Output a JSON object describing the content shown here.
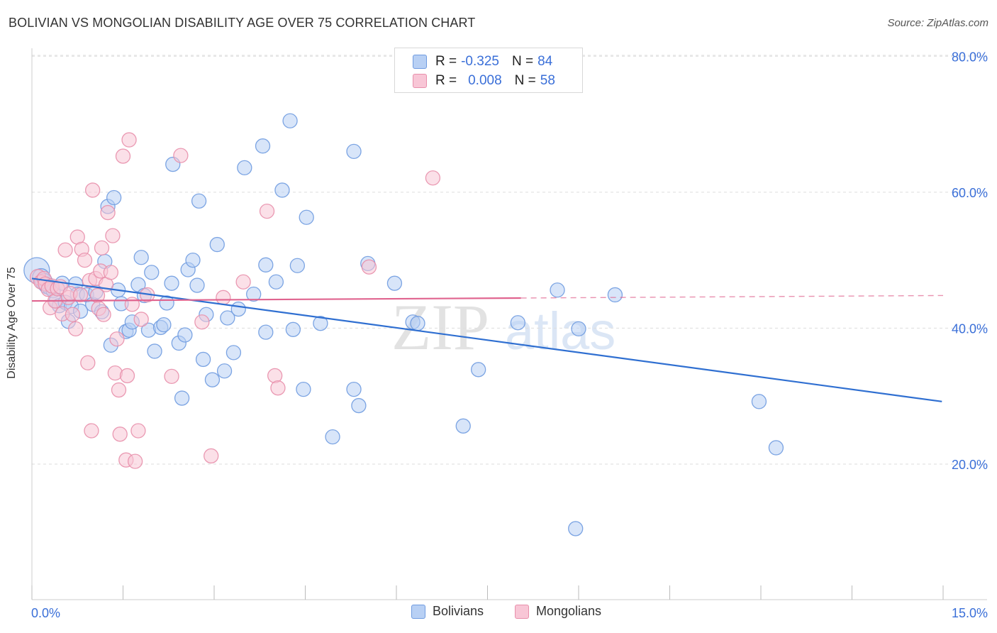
{
  "title": "BOLIVIAN VS MONGOLIAN DISABILITY AGE OVER 75 CORRELATION CHART",
  "source": "Source: ZipAtlas.com",
  "watermark": {
    "zip": "ZIP",
    "atlas": "atlas"
  },
  "legend": {
    "rows": [
      {
        "r_label": "R =",
        "r_value": "-0.325",
        "n_label": "N =",
        "n_value": "84",
        "fill": "#b8d0f4",
        "stroke": "#6f9be0"
      },
      {
        "r_label": "R =",
        "r_value": "0.008",
        "n_label": "N =",
        "n_value": "58",
        "fill": "#f8c6d6",
        "stroke": "#e88fab"
      }
    ]
  },
  "bottom_legend": [
    {
      "label": "Bolivians",
      "fill": "#b8d0f4",
      "stroke": "#6f9be0"
    },
    {
      "label": "Mongolians",
      "fill": "#f8c6d6",
      "stroke": "#e88fab"
    }
  ],
  "chart_data": {
    "type": "scatter",
    "title": "BOLIVIAN VS MONGOLIAN DISABILITY AGE OVER 75 CORRELATION CHART",
    "xlabel": "",
    "ylabel": "Disability Age Over 75",
    "xlim": [
      0,
      15
    ],
    "ylim": [
      0,
      85
    ],
    "x_tick_labels": [
      "0.0%",
      "15.0%"
    ],
    "y_ticks": [
      20,
      40,
      60,
      80
    ],
    "y_tick_labels": [
      "20.0%",
      "40.0%",
      "60.0%",
      "80.0%"
    ],
    "grid": "horizontal dashed",
    "legend_position": "top-center",
    "series": [
      {
        "name": "Bolivians",
        "color": "#6f9be0",
        "fill": "#b8d0f4",
        "trend_color": "#2f6fd1",
        "trend": {
          "x": [
            0.0,
            14.98
          ],
          "y": [
            47.3,
            29.2
          ],
          "dashed_from": null
        },
        "points": [
          [
            0.08,
            48.5,
            18
          ],
          [
            0.15,
            47.5,
            12
          ],
          [
            0.2,
            46.8,
            12
          ],
          [
            0.25,
            46.2,
            11
          ],
          [
            0.3,
            46.0,
            11
          ],
          [
            0.35,
            45.5,
            10
          ],
          [
            0.4,
            44.0,
            10
          ],
          [
            0.45,
            43.3,
            10
          ],
          [
            0.5,
            46.6,
            10
          ],
          [
            0.55,
            43.8,
            10
          ],
          [
            0.6,
            41.0,
            10
          ],
          [
            0.65,
            43.2,
            10
          ],
          [
            0.72,
            46.5,
            10
          ],
          [
            0.75,
            45.0,
            10
          ],
          [
            0.8,
            42.5,
            10
          ],
          [
            0.9,
            44.9,
            10
          ],
          [
            1.0,
            43.5,
            10
          ],
          [
            1.05,
            45.3,
            10
          ],
          [
            1.15,
            42.4,
            10
          ],
          [
            1.2,
            49.8,
            10
          ],
          [
            1.25,
            57.9,
            10
          ],
          [
            1.3,
            37.5,
            10
          ],
          [
            1.35,
            59.2,
            10
          ],
          [
            1.42,
            45.6,
            10
          ],
          [
            1.47,
            43.6,
            10
          ],
          [
            1.55,
            39.5,
            10
          ],
          [
            1.6,
            39.7,
            10
          ],
          [
            1.65,
            40.9,
            10
          ],
          [
            1.75,
            46.4,
            10
          ],
          [
            1.8,
            50.4,
            10
          ],
          [
            1.85,
            44.8,
            10
          ],
          [
            1.92,
            39.7,
            10
          ],
          [
            1.97,
            48.2,
            10
          ],
          [
            2.02,
            36.6,
            10
          ],
          [
            2.12,
            40.1,
            10
          ],
          [
            2.17,
            40.5,
            10
          ],
          [
            2.22,
            43.7,
            10
          ],
          [
            2.3,
            46.6,
            10
          ],
          [
            2.32,
            64.1,
            10
          ],
          [
            2.42,
            37.8,
            10
          ],
          [
            2.47,
            29.7,
            10
          ],
          [
            2.52,
            39.0,
            10
          ],
          [
            2.57,
            48.6,
            10
          ],
          [
            2.65,
            50.0,
            10
          ],
          [
            2.72,
            46.3,
            10
          ],
          [
            2.75,
            58.7,
            10
          ],
          [
            2.82,
            35.4,
            10
          ],
          [
            2.87,
            42.0,
            10
          ],
          [
            2.97,
            32.4,
            10
          ],
          [
            3.05,
            52.3,
            10
          ],
          [
            3.17,
            33.7,
            10
          ],
          [
            3.22,
            41.5,
            10
          ],
          [
            3.32,
            36.4,
            10
          ],
          [
            3.4,
            42.8,
            10
          ],
          [
            3.5,
            63.6,
            10
          ],
          [
            3.65,
            45.0,
            10
          ],
          [
            3.8,
            66.8,
            10
          ],
          [
            3.85,
            49.3,
            10
          ],
          [
            3.85,
            39.4,
            10
          ],
          [
            4.02,
            46.8,
            10
          ],
          [
            4.12,
            60.3,
            10
          ],
          [
            4.25,
            70.5,
            10
          ],
          [
            4.3,
            39.8,
            10
          ],
          [
            4.37,
            49.2,
            10
          ],
          [
            4.47,
            31.0,
            10
          ],
          [
            4.52,
            56.3,
            10
          ],
          [
            4.75,
            40.7,
            10
          ],
          [
            4.95,
            24.0,
            10
          ],
          [
            5.3,
            66.0,
            10
          ],
          [
            5.3,
            31.0,
            10
          ],
          [
            5.38,
            28.6,
            10
          ],
          [
            5.53,
            49.5,
            10
          ],
          [
            5.97,
            46.6,
            10
          ],
          [
            6.27,
            40.9,
            10
          ],
          [
            6.35,
            40.7,
            10
          ],
          [
            7.1,
            25.6,
            10
          ],
          [
            7.35,
            33.9,
            10
          ],
          [
            8.0,
            40.8,
            10
          ],
          [
            8.65,
            45.6,
            10
          ],
          [
            8.95,
            10.5,
            10
          ],
          [
            9.0,
            39.9,
            10
          ],
          [
            9.6,
            44.9,
            10
          ],
          [
            11.97,
            29.2,
            10
          ],
          [
            12.25,
            22.4,
            10
          ]
        ]
      },
      {
        "name": "Mongolians",
        "color": "#e88fab",
        "fill": "#f8c6d6",
        "trend_color": "#e0648f",
        "trend": {
          "x": [
            0.0,
            15.0
          ],
          "y": [
            44.0,
            44.8
          ],
          "dashed_from": 8.05
        },
        "points": [
          [
            0.1,
            47.5,
            11
          ],
          [
            0.15,
            46.8,
            10
          ],
          [
            0.2,
            47.3,
            10
          ],
          [
            0.22,
            46.5,
            10
          ],
          [
            0.27,
            45.7,
            10
          ],
          [
            0.3,
            43.0,
            10
          ],
          [
            0.33,
            46.2,
            10
          ],
          [
            0.38,
            44.0,
            10
          ],
          [
            0.42,
            45.8,
            10
          ],
          [
            0.47,
            46.1,
            10
          ],
          [
            0.5,
            42.1,
            10
          ],
          [
            0.55,
            51.5,
            10
          ],
          [
            0.6,
            44.5,
            10
          ],
          [
            0.63,
            45.1,
            10
          ],
          [
            0.67,
            42.0,
            10
          ],
          [
            0.72,
            39.9,
            10
          ],
          [
            0.75,
            53.4,
            10
          ],
          [
            0.8,
            44.9,
            10
          ],
          [
            0.82,
            51.6,
            10
          ],
          [
            0.87,
            50.0,
            10
          ],
          [
            0.92,
            34.9,
            10
          ],
          [
            0.95,
            47.0,
            10
          ],
          [
            0.98,
            24.9,
            10
          ],
          [
            1.0,
            60.3,
            10
          ],
          [
            1.05,
            47.3,
            10
          ],
          [
            1.08,
            44.8,
            10
          ],
          [
            1.1,
            42.9,
            10
          ],
          [
            1.13,
            48.4,
            10
          ],
          [
            1.15,
            51.8,
            10
          ],
          [
            1.18,
            42.0,
            10
          ],
          [
            1.22,
            46.4,
            10
          ],
          [
            1.25,
            57.0,
            10
          ],
          [
            1.3,
            48.2,
            10
          ],
          [
            1.33,
            53.6,
            10
          ],
          [
            1.37,
            33.4,
            10
          ],
          [
            1.4,
            38.4,
            10
          ],
          [
            1.43,
            30.9,
            10
          ],
          [
            1.45,
            24.4,
            10
          ],
          [
            1.5,
            65.3,
            10
          ],
          [
            1.55,
            20.6,
            10
          ],
          [
            1.57,
            33.0,
            10
          ],
          [
            1.6,
            67.7,
            10
          ],
          [
            1.65,
            43.5,
            10
          ],
          [
            1.7,
            20.4,
            10
          ],
          [
            1.75,
            24.9,
            10
          ],
          [
            1.8,
            41.3,
            10
          ],
          [
            1.9,
            44.9,
            10
          ],
          [
            2.3,
            32.9,
            10
          ],
          [
            2.45,
            65.4,
            10
          ],
          [
            2.8,
            40.9,
            10
          ],
          [
            2.95,
            21.2,
            10
          ],
          [
            3.15,
            44.5,
            10
          ],
          [
            3.48,
            46.8,
            10
          ],
          [
            3.87,
            57.2,
            10
          ],
          [
            4.0,
            33.0,
            10
          ],
          [
            4.05,
            31.2,
            10
          ],
          [
            5.55,
            49.0,
            10
          ],
          [
            6.6,
            62.1,
            10
          ]
        ]
      }
    ]
  }
}
